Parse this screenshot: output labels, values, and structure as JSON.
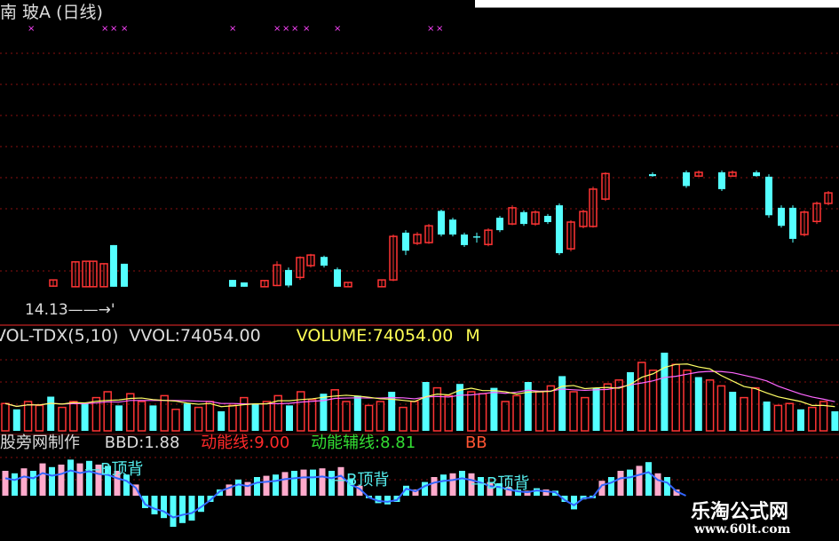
{
  "header": {
    "title": "南 玻A (日线)",
    "price_marker": "14.13"
  },
  "volume_panel": {
    "indicator": "VOL-TDX(5,10)",
    "vvol_label": "VVOL:74054.00",
    "volume_label": "VOLUME:74054.00",
    "trailing": "M"
  },
  "indicator_panel": {
    "source": "股旁网制作",
    "bbd_label": "BBD:1.88",
    "line1_label": "动能线:9.00",
    "line2_label": "动能辅线:8.81",
    "trailing": "BB",
    "annotations": [
      "—B顶背",
      "—B顶背",
      "—B顶背"
    ]
  },
  "watermark": {
    "name": "乐淘公式网",
    "url": "www.60lt.com"
  },
  "colors": {
    "up": "#ff3434",
    "down": "#54ffff",
    "grid": "#8a1010",
    "ma5": "#ffff66",
    "ma10": "#ff66ff",
    "mark": "#ff44ff",
    "pink": "#ffaacc",
    "blue": "#3366ff",
    "orange": "#ff8833"
  },
  "chart_data": {
    "type": "candlestick",
    "note_units": "estimated relative price",
    "candles": [
      {
        "x": 60,
        "o": 14.5,
        "c": 14.6,
        "h": 14.6,
        "l": 14.49
      },
      {
        "x": 85,
        "o": 14.49,
        "c": 14.89,
        "h": 14.9,
        "l": 14.49
      },
      {
        "x": 97,
        "o": 14.49,
        "c": 14.9,
        "h": 14.9,
        "l": 14.49
      },
      {
        "x": 105,
        "o": 14.49,
        "c": 14.9,
        "h": 14.9,
        "l": 14.49
      },
      {
        "x": 117,
        "o": 14.49,
        "c": 14.86,
        "h": 14.87,
        "l": 14.49
      },
      {
        "x": 128,
        "o": 15.16,
        "c": 14.49,
        "h": 15.16,
        "l": 14.49
      },
      {
        "x": 140,
        "o": 14.86,
        "c": 14.49,
        "h": 14.86,
        "l": 14.49
      },
      {
        "x": 262,
        "o": 14.6,
        "c": 14.49,
        "h": 14.6,
        "l": 14.49
      },
      {
        "x": 275,
        "o": 14.56,
        "c": 14.49,
        "h": 14.56,
        "l": 14.49
      },
      {
        "x": 298,
        "o": 14.49,
        "c": 14.59,
        "h": 14.59,
        "l": 14.49
      },
      {
        "x": 312,
        "o": 14.51,
        "c": 14.84,
        "h": 14.9,
        "l": 14.5
      },
      {
        "x": 325,
        "o": 14.76,
        "c": 14.51,
        "h": 14.8,
        "l": 14.48
      },
      {
        "x": 338,
        "o": 14.64,
        "c": 14.96,
        "h": 14.98,
        "l": 14.6
      },
      {
        "x": 350,
        "o": 14.83,
        "c": 15.0,
        "h": 15.02,
        "l": 14.8
      },
      {
        "x": 365,
        "o": 14.97,
        "c": 14.83,
        "h": 14.99,
        "l": 14.8
      },
      {
        "x": 380,
        "o": 14.77,
        "c": 14.49,
        "h": 14.8,
        "l": 14.49
      },
      {
        "x": 392,
        "o": 14.49,
        "c": 14.56,
        "h": 14.56,
        "l": 14.49
      },
      {
        "x": 430,
        "o": 14.49,
        "c": 14.6,
        "h": 14.6,
        "l": 14.49
      },
      {
        "x": 443,
        "o": 14.6,
        "c": 15.3,
        "h": 15.33,
        "l": 14.58
      },
      {
        "x": 457,
        "o": 15.36,
        "c": 15.07,
        "h": 15.4,
        "l": 15.0
      },
      {
        "x": 470,
        "o": 15.19,
        "c": 15.33,
        "h": 15.37,
        "l": 15.16
      },
      {
        "x": 483,
        "o": 15.2,
        "c": 15.47,
        "h": 15.5,
        "l": 15.18
      },
      {
        "x": 497,
        "o": 15.71,
        "c": 15.33,
        "h": 15.73,
        "l": 15.3
      },
      {
        "x": 510,
        "o": 15.57,
        "c": 15.33,
        "h": 15.6,
        "l": 15.3
      },
      {
        "x": 523,
        "o": 15.33,
        "c": 15.16,
        "h": 15.36,
        "l": 15.13
      },
      {
        "x": 537,
        "o": 15.3,
        "c": 15.28,
        "h": 15.36,
        "l": 15.2
      },
      {
        "x": 550,
        "o": 15.17,
        "c": 15.4,
        "h": 15.43,
        "l": 15.14
      },
      {
        "x": 563,
        "o": 15.6,
        "c": 15.4,
        "h": 15.63,
        "l": 15.37
      },
      {
        "x": 577,
        "o": 15.5,
        "c": 15.76,
        "h": 15.8,
        "l": 15.48
      },
      {
        "x": 590,
        "o": 15.69,
        "c": 15.5,
        "h": 15.72,
        "l": 15.47
      },
      {
        "x": 603,
        "o": 15.5,
        "c": 15.69,
        "h": 15.72,
        "l": 15.47
      },
      {
        "x": 617,
        "o": 15.63,
        "c": 15.53,
        "h": 15.66,
        "l": 15.5
      },
      {
        "x": 630,
        "o": 15.8,
        "c": 15.03,
        "h": 15.83,
        "l": 15.0
      },
      {
        "x": 643,
        "o": 15.1,
        "c": 15.53,
        "h": 15.56,
        "l": 15.06
      },
      {
        "x": 657,
        "o": 15.46,
        "c": 15.7,
        "h": 15.73,
        "l": 15.43
      },
      {
        "x": 668,
        "o": 15.46,
        "c": 16.06,
        "h": 16.1,
        "l": 15.44
      },
      {
        "x": 682,
        "o": 15.9,
        "c": 16.31,
        "h": 16.33,
        "l": 15.87
      },
      {
        "x": 735,
        "o": 16.3,
        "c": 16.27,
        "h": 16.33,
        "l": 16.26
      },
      {
        "x": 773,
        "o": 16.33,
        "c": 16.11,
        "h": 16.36,
        "l": 16.08
      },
      {
        "x": 787,
        "o": 16.27,
        "c": 16.33,
        "h": 16.36,
        "l": 16.26
      },
      {
        "x": 813,
        "o": 16.33,
        "c": 16.06,
        "h": 16.36,
        "l": 16.03
      },
      {
        "x": 825,
        "o": 16.27,
        "c": 16.33,
        "h": 16.36,
        "l": 16.26
      },
      {
        "x": 852,
        "o": 16.33,
        "c": 16.27,
        "h": 16.36,
        "l": 16.26
      },
      {
        "x": 866,
        "o": 16.26,
        "c": 15.64,
        "h": 16.3,
        "l": 15.6
      },
      {
        "x": 880,
        "o": 15.76,
        "c": 15.47,
        "h": 15.8,
        "l": 15.44
      },
      {
        "x": 893,
        "o": 15.76,
        "c": 15.26,
        "h": 15.8,
        "l": 15.2
      },
      {
        "x": 906,
        "o": 15.33,
        "c": 15.69,
        "h": 15.72,
        "l": 15.3
      },
      {
        "x": 920,
        "o": 15.54,
        "c": 15.83,
        "h": 15.86,
        "l": 15.5
      },
      {
        "x": 933,
        "o": 15.83,
        "c": 16.0,
        "h": 16.03,
        "l": 15.8
      }
    ],
    "volume": [
      28,
      22,
      30,
      26,
      35,
      24,
      30,
      28,
      34,
      40,
      26,
      38,
      30,
      26,
      36,
      22,
      28,
      24,
      30,
      20,
      26,
      34,
      28,
      30,
      36,
      26,
      40,
      32,
      38,
      42,
      30,
      36,
      26,
      30,
      40,
      24,
      30,
      50,
      44,
      36,
      48,
      40,
      38,
      44,
      30,
      36,
      50,
      40,
      46,
      56,
      40,
      34,
      44,
      48,
      52,
      60,
      70,
      62,
      80,
      68,
      62,
      55,
      52,
      46,
      40,
      34,
      44,
      30,
      26,
      28,
      22,
      24,
      30,
      20
    ],
    "bbd": [
      40,
      36,
      44,
      40,
      52,
      46,
      50,
      58,
      52,
      56,
      50,
      48,
      40,
      34,
      18,
      -20,
      -30,
      -36,
      -50,
      -44,
      -40,
      -26,
      -10,
      10,
      18,
      26,
      22,
      30,
      32,
      34,
      38,
      40,
      42,
      42,
      44,
      40,
      46,
      26,
      16,
      -4,
      -12,
      -14,
      -10,
      16,
      10,
      22,
      30,
      34,
      36,
      40,
      36,
      30,
      22,
      20,
      14,
      10,
      8,
      12,
      10,
      8,
      -10,
      -22,
      -6,
      -4,
      24,
      30,
      40,
      42,
      48,
      54,
      36,
      30,
      10,
      0
    ],
    "marks_x": [
      35,
      118,
      128,
      140,
      262,
      312,
      322,
      332,
      345,
      380,
      485,
      495
    ]
  }
}
